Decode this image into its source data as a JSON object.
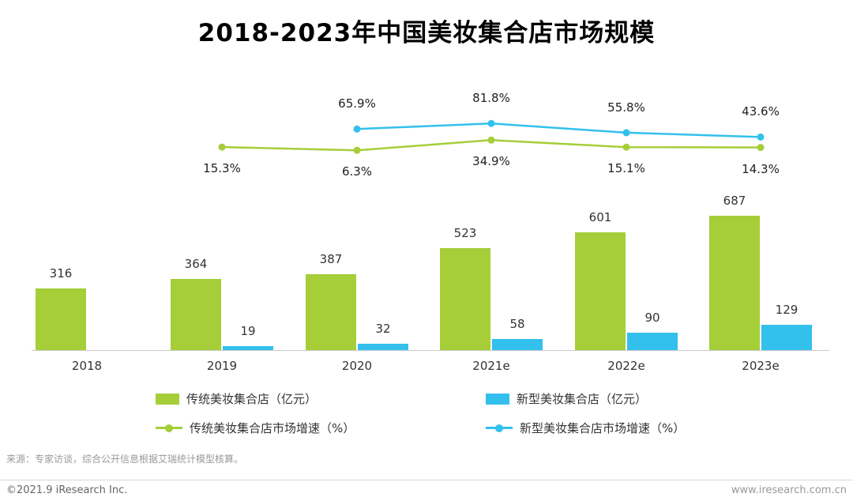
{
  "title": "2018-2023年中国美妆集合店市场规模",
  "colors": {
    "green": "#a5ce39",
    "blue": "#33c0ed",
    "axis": "#c9c9c9"
  },
  "chart_data": {
    "type": "bar+line",
    "title": "2018-2023年中国美妆集合店市场规模",
    "categories": [
      "2018",
      "2019",
      "2020",
      "2021e",
      "2022e",
      "2023e"
    ],
    "series": [
      {
        "name": "传统美妆集合店（亿元）",
        "type": "bar",
        "color": "#a5ce39",
        "values": [
          316,
          364,
          387,
          523,
          601,
          687
        ]
      },
      {
        "name": "新型美妆集合店（亿元）",
        "type": "bar",
        "color": "#33c0ed",
        "values": [
          null,
          19,
          32,
          58,
          90,
          129
        ]
      },
      {
        "name": "传统美妆集合店市场增速（%）",
        "type": "line",
        "color": "#a5ce39",
        "values": [
          null,
          15.3,
          6.3,
          34.9,
          15.1,
          14.3
        ]
      },
      {
        "name": "新型美妆集合店市场增速（%）",
        "type": "line",
        "color": "#33c0ed",
        "values": [
          null,
          null,
          65.9,
          81.8,
          55.8,
          43.6
        ]
      }
    ],
    "xlabel": "",
    "ylabel": "",
    "grid": false,
    "legend_position": "bottom",
    "bar_value_unit": "亿元",
    "line_value_unit": "%"
  },
  "source": "来源：专家访谈，综合公开信息根据艾瑞统计模型核算。",
  "footer": {
    "left": "©2021.9 iResearch Inc.",
    "right": "www.iresearch.com.cn"
  }
}
